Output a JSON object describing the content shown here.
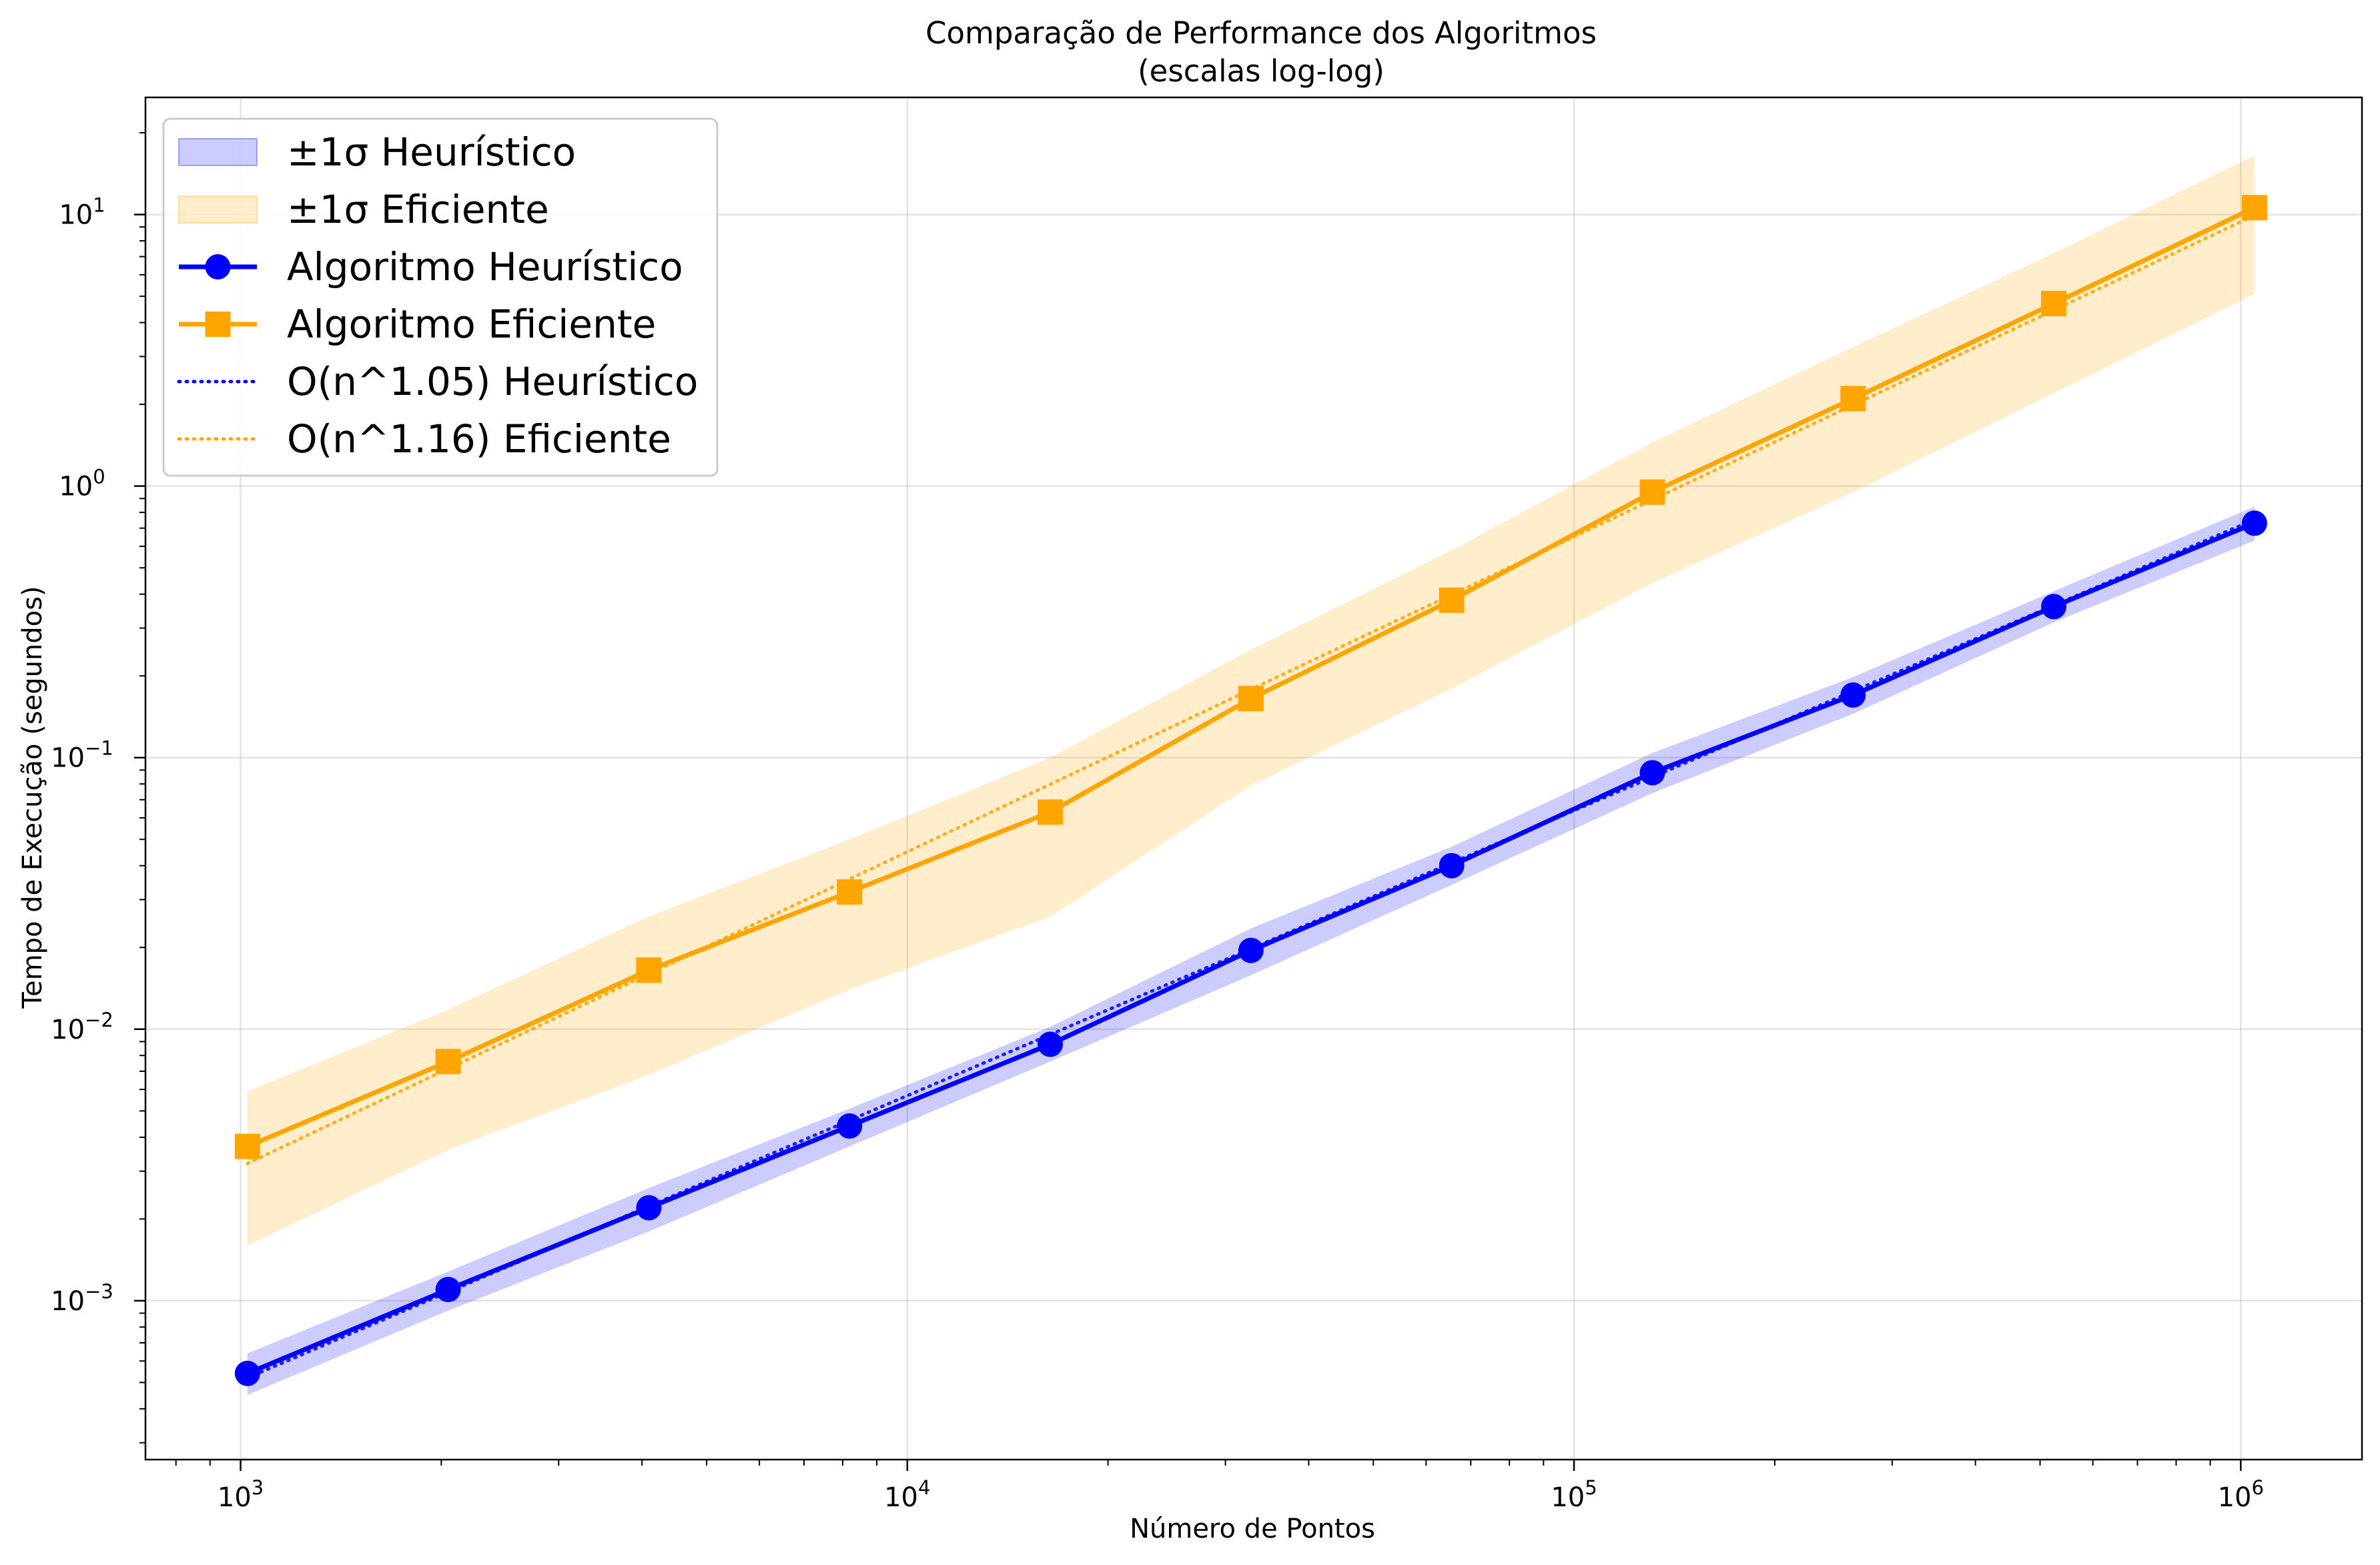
{
  "chart_data": {
    "type": "line",
    "title": "Comparação de Performance dos Algoritmos",
    "subtitle": "(escalas log-log)",
    "xlabel": "Número de Pontos",
    "ylabel": "Tempo de Execução (segundos)",
    "xscale": "log",
    "yscale": "log",
    "xlim": [
      720,
      1520000
    ],
    "ylim": [
      0.00026,
      27
    ],
    "grid": true,
    "legend_position": "top-left",
    "x_ticks": [
      {
        "value": 1000,
        "base": "10",
        "exp": "3"
      },
      {
        "value": 10000,
        "base": "10",
        "exp": "4"
      },
      {
        "value": 100000,
        "base": "10",
        "exp": "5"
      },
      {
        "value": 1000000,
        "base": "10",
        "exp": "6"
      }
    ],
    "y_ticks": [
      {
        "value": 0.001,
        "base": "10",
        "exp": "−3"
      },
      {
        "value": 0.01,
        "base": "10",
        "exp": "−2"
      },
      {
        "value": 0.1,
        "base": "10",
        "exp": "−1"
      },
      {
        "value": 1,
        "base": "10",
        "exp": "0"
      },
      {
        "value": 10,
        "base": "10",
        "exp": "1"
      }
    ],
    "x": [
      1024,
      2048,
      4096,
      8192,
      16384,
      32768,
      65536,
      131072,
      262144,
      524288,
      1048576
    ],
    "series": [
      {
        "name": "Algoritmo Heurístico",
        "color": "#0000ff",
        "marker": "circle",
        "values": [
          0.00054,
          0.0011,
          0.0022,
          0.0044,
          0.0088,
          0.0195,
          0.04,
          0.088,
          0.17,
          0.36,
          0.73
        ],
        "band_lower": [
          0.00045,
          0.00092,
          0.0018,
          0.0037,
          0.0076,
          0.0158,
          0.034,
          0.074,
          0.145,
          0.315,
          0.63
        ],
        "band_upper": [
          0.00064,
          0.00128,
          0.0026,
          0.0051,
          0.0102,
          0.0235,
          0.047,
          0.104,
          0.198,
          0.41,
          0.84
        ],
        "band_name": "±1σ Heurístico",
        "band_color": "#0000ff"
      },
      {
        "name": "Algoritmo Eficiente",
        "color": "#ffa500",
        "marker": "square",
        "values": [
          0.0037,
          0.0076,
          0.0165,
          0.032,
          0.063,
          0.165,
          0.38,
          0.95,
          2.1,
          4.7,
          10.6
        ],
        "band_lower": [
          0.0016,
          0.0036,
          0.0068,
          0.014,
          0.026,
          0.079,
          0.18,
          0.44,
          0.95,
          2.2,
          5.1
        ],
        "band_upper": [
          0.0059,
          0.0118,
          0.026,
          0.05,
          0.1,
          0.25,
          0.58,
          1.45,
          3.25,
          7.2,
          16.5
        ],
        "band_name": "±1σ Eficiente",
        "band_color": "#ffa500"
      }
    ],
    "fits": [
      {
        "name": "O(n^1.05) Heurístico",
        "color": "#0000ff",
        "exponent": 1.05,
        "y_at_first": 0.00052
      },
      {
        "name": "O(n^1.16) Eficiente",
        "color": "#ffa500",
        "exponent": 1.16,
        "y_at_first": 0.0032
      }
    ],
    "legend": [
      {
        "label": "±1σ Heurístico",
        "kind": "band",
        "color": "#0000ff"
      },
      {
        "label": "±1σ Eficiente",
        "kind": "band",
        "color": "#ffa500"
      },
      {
        "label": "Algoritmo Heurístico",
        "kind": "line-circle",
        "color": "#0000ff"
      },
      {
        "label": "Algoritmo Eficiente",
        "kind": "line-square",
        "color": "#ffa500"
      },
      {
        "label": "O(n^1.05) Heurístico",
        "kind": "dotted",
        "color": "#0000ff"
      },
      {
        "label": "O(n^1.16) Eficiente",
        "kind": "dotted",
        "color": "#ffa500"
      }
    ]
  }
}
